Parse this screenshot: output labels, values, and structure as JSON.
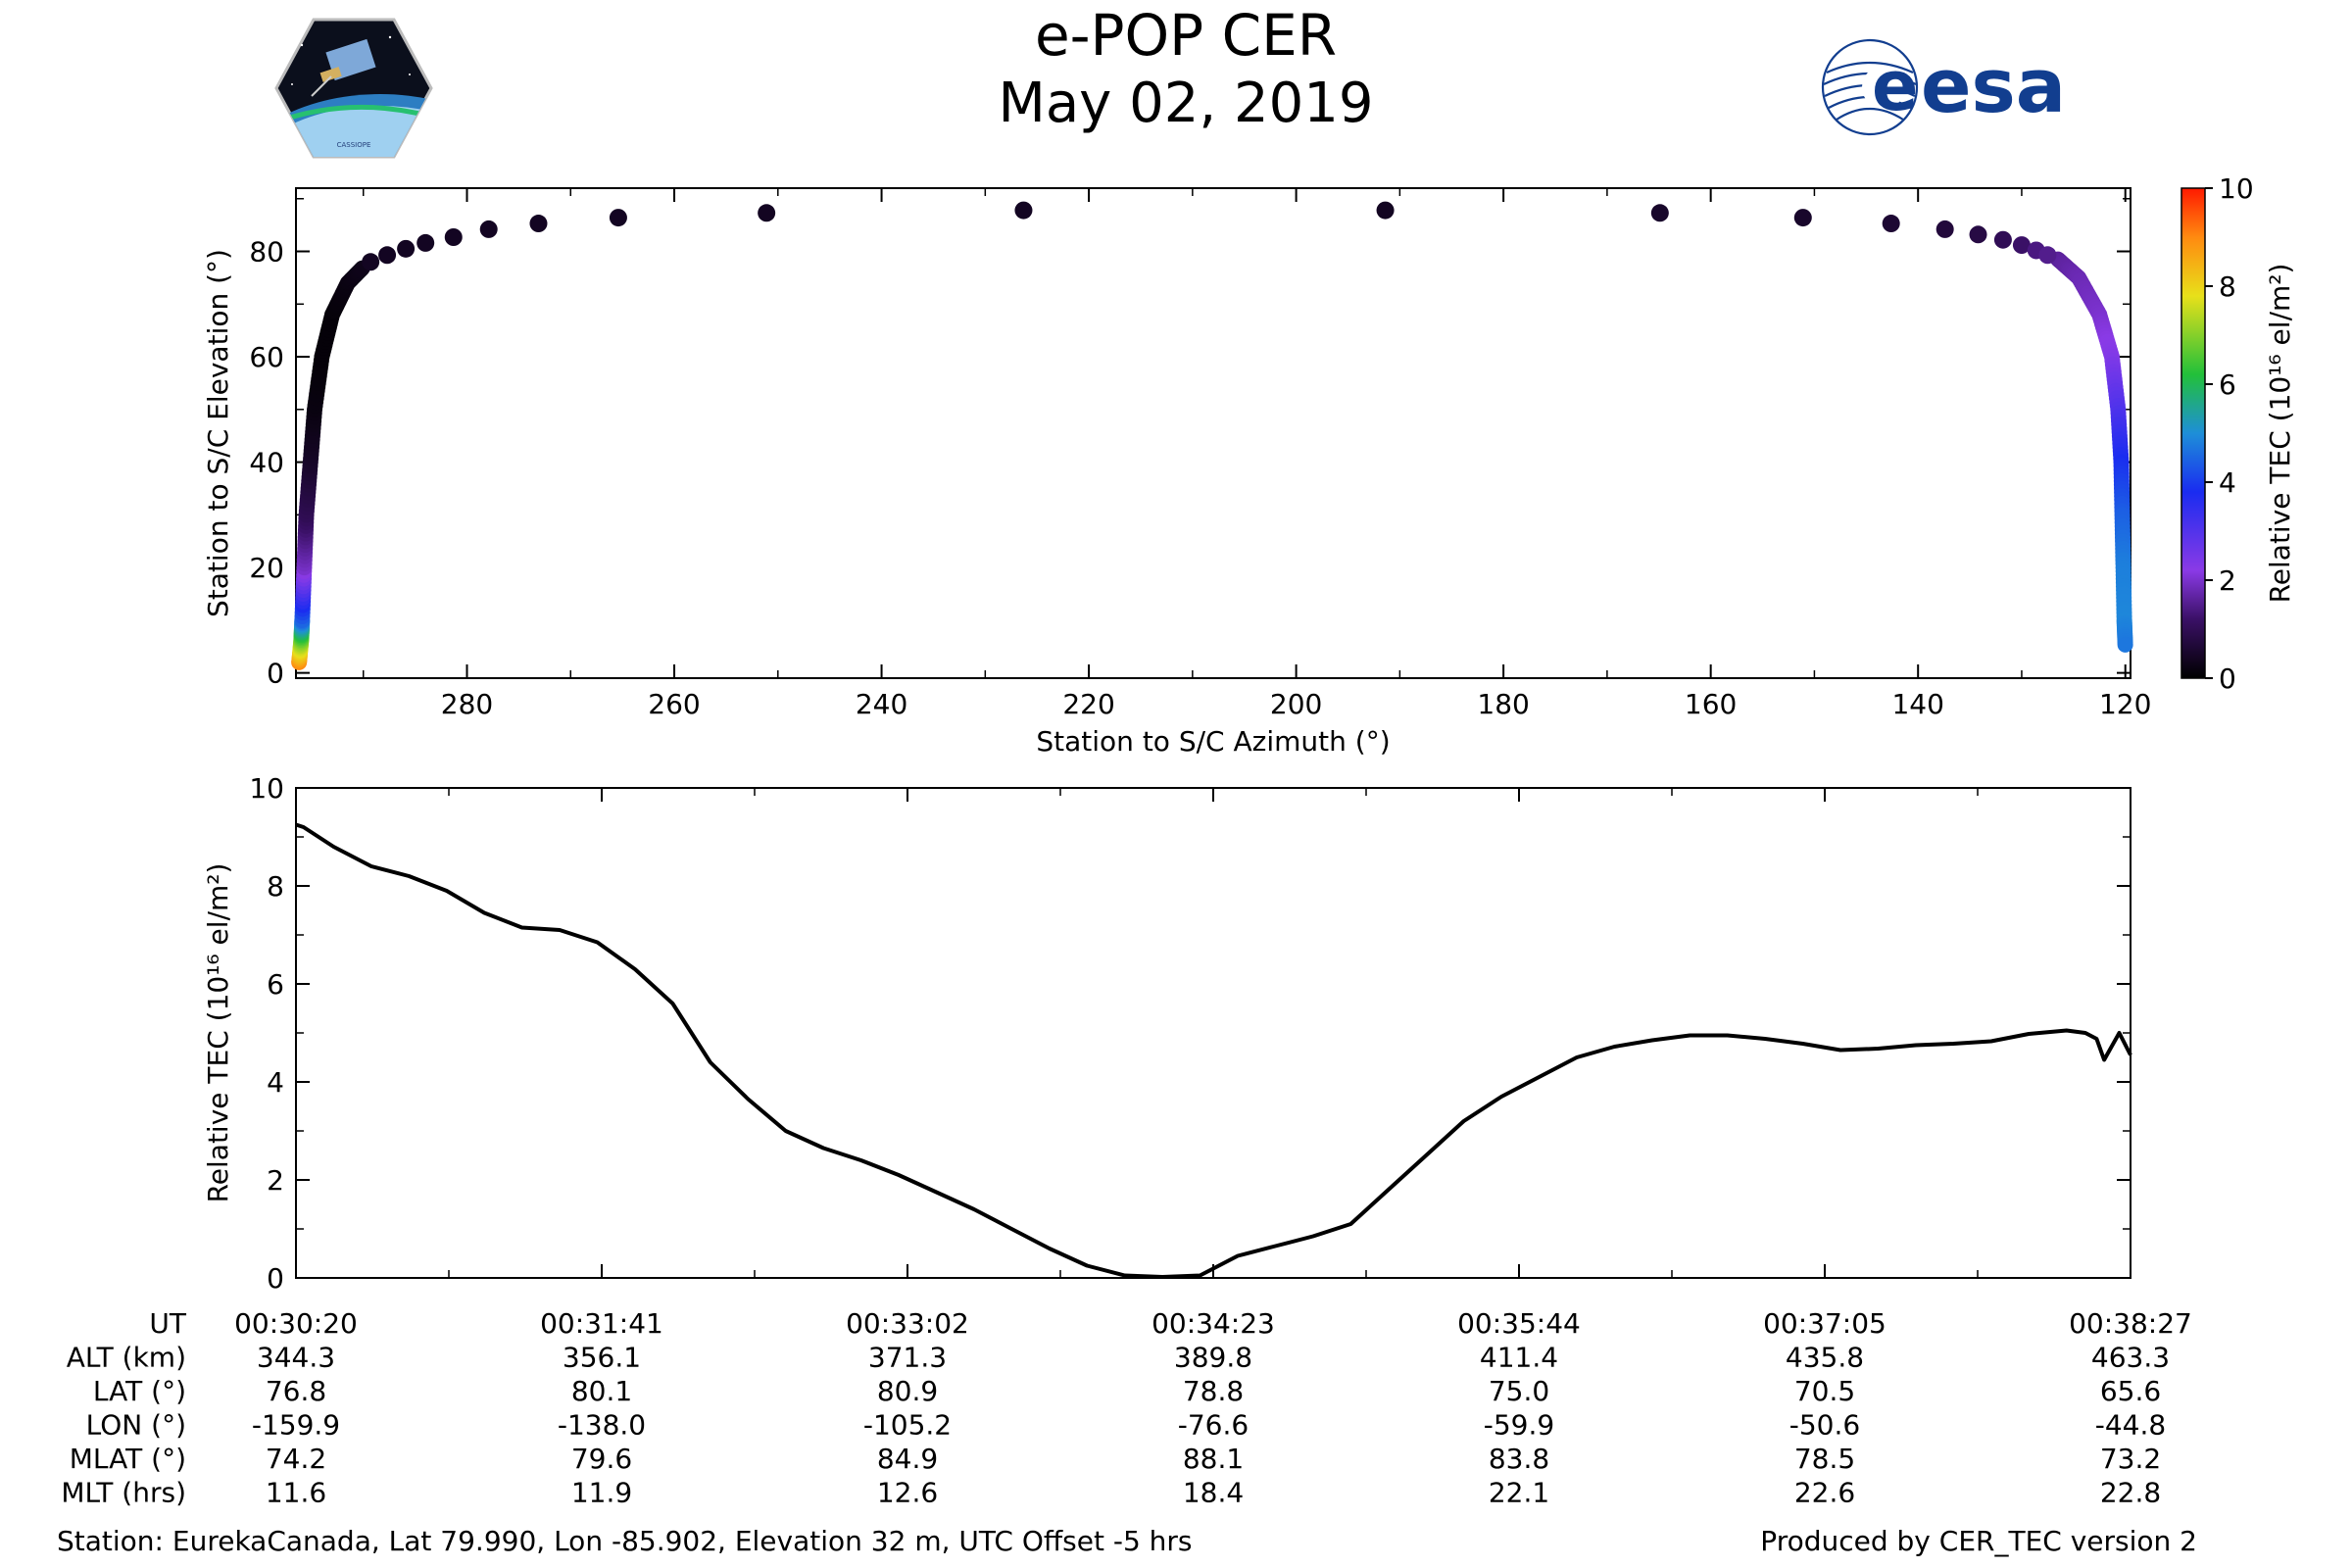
{
  "title": "e-POP CER",
  "subtitle": "May 02, 2019",
  "logos": {
    "left": {
      "icon": "cassiope-mission-badge-icon",
      "text": "CASSIOPE"
    },
    "right": {
      "icon": "esa-logo-icon",
      "text": "esa"
    }
  },
  "colors": {
    "line": "#000000",
    "axes": "#000000",
    "background": "#ffffff",
    "esa_blue": "#123e8f"
  },
  "chart_data": [
    {
      "type": "scatter",
      "id": "elev-az",
      "xlabel": "Station to S/C Azimuth (°)",
      "ylabel": "Station to S/C Elevation (°)",
      "xlim": [
        296.5,
        119.5
      ],
      "ylim": [
        -1,
        92
      ],
      "xticks": [
        280,
        260,
        240,
        220,
        200,
        180,
        160,
        140,
        120
      ],
      "xtick_labels": [
        "280",
        "260",
        "240",
        "220",
        "200",
        "180",
        "160",
        "140",
        "120"
      ],
      "yticks": [
        0,
        20,
        40,
        60,
        80
      ],
      "ytick_labels": [
        "0",
        "20",
        "40",
        "60",
        "80"
      ],
      "colorbar": {
        "label": "Relative TEC (10¹⁶ el/m²)",
        "ticks": [
          0,
          2,
          4,
          6,
          8,
          10
        ],
        "tick_labels": [
          "0",
          "2",
          "4",
          "6",
          "8",
          "10"
        ],
        "colormap": "gnuplot-like: black-purple-blue-green-yellow-red",
        "range": [
          0,
          10
        ]
      },
      "sparse_points": [
        {
          "az": 289.3,
          "el": 78.0,
          "tec": 0.4
        },
        {
          "az": 287.7,
          "el": 79.3,
          "tec": 0.4
        },
        {
          "az": 285.9,
          "el": 80.5,
          "tec": 0.4
        },
        {
          "az": 284.0,
          "el": 81.6,
          "tec": 0.4
        },
        {
          "az": 281.3,
          "el": 82.7,
          "tec": 0.4
        },
        {
          "az": 277.9,
          "el": 84.2,
          "tec": 0.4
        },
        {
          "az": 273.1,
          "el": 85.3,
          "tec": 0.4
        },
        {
          "az": 265.4,
          "el": 86.4,
          "tec": 0.4
        },
        {
          "az": 251.1,
          "el": 87.3,
          "tec": 0.4
        },
        {
          "az": 226.3,
          "el": 87.8,
          "tec": 0.4
        },
        {
          "az": 191.4,
          "el": 87.8,
          "tec": 0.4
        },
        {
          "az": 164.9,
          "el": 87.3,
          "tec": 0.5
        },
        {
          "az": 151.1,
          "el": 86.4,
          "tec": 0.5
        },
        {
          "az": 142.6,
          "el": 85.3,
          "tec": 0.6
        },
        {
          "az": 137.4,
          "el": 84.2,
          "tec": 0.7
        },
        {
          "az": 134.2,
          "el": 83.2,
          "tec": 0.8
        },
        {
          "az": 131.8,
          "el": 82.2,
          "tec": 1.0
        },
        {
          "az": 130.0,
          "el": 81.2,
          "tec": 1.2
        },
        {
          "az": 128.6,
          "el": 80.2,
          "tec": 1.4
        },
        {
          "az": 127.5,
          "el": 79.3,
          "tec": 1.5
        }
      ],
      "left_branch_dense": [
        {
          "az": 296.2,
          "el": 2,
          "tec": 9.0
        },
        {
          "az": 296.0,
          "el": 6,
          "tec": 7.0
        },
        {
          "az": 295.9,
          "el": 10,
          "tec": 4.5
        },
        {
          "az": 295.7,
          "el": 20,
          "tec": 2.0
        },
        {
          "az": 295.5,
          "el": 30,
          "tec": 1.0
        },
        {
          "az": 295.1,
          "el": 40,
          "tec": 0.5
        },
        {
          "az": 294.7,
          "el": 50,
          "tec": 0.2
        },
        {
          "az": 294.0,
          "el": 60,
          "tec": 0.1
        },
        {
          "az": 293.0,
          "el": 68,
          "tec": 0.1
        },
        {
          "az": 291.5,
          "el": 74,
          "tec": 0.2
        },
        {
          "az": 290.0,
          "el": 77,
          "tec": 0.3
        }
      ],
      "right_branch_dense": [
        {
          "az": 126.5,
          "el": 78.5,
          "tec": 1.6
        },
        {
          "az": 124.5,
          "el": 75,
          "tec": 1.8
        },
        {
          "az": 122.5,
          "el": 68,
          "tec": 2.0
        },
        {
          "az": 121.3,
          "el": 60,
          "tec": 2.3
        },
        {
          "az": 120.7,
          "el": 50,
          "tec": 3.0
        },
        {
          "az": 120.4,
          "el": 40,
          "tec": 3.8
        },
        {
          "az": 120.3,
          "el": 30,
          "tec": 4.4
        },
        {
          "az": 120.2,
          "el": 20,
          "tec": 4.8
        },
        {
          "az": 120.1,
          "el": 10,
          "tec": 4.9
        },
        {
          "az": 120.0,
          "el": 5,
          "tec": 4.7
        }
      ]
    },
    {
      "type": "line",
      "id": "tec-time",
      "ylabel": "Relative TEC (10¹⁶ el/m²)",
      "xlim": [
        0,
        487
      ],
      "ylim": [
        0,
        10
      ],
      "yticks": [
        0,
        2,
        4,
        6,
        8,
        10
      ],
      "ytick_labels": [
        "0",
        "2",
        "4",
        "6",
        "8",
        "10"
      ],
      "x_seconds_from_start": [
        0,
        2,
        4,
        10,
        20,
        30,
        40,
        50,
        60,
        70,
        80,
        90,
        100,
        110,
        120,
        130,
        140,
        150,
        160,
        170,
        180,
        190,
        200,
        210,
        220,
        230,
        240,
        250,
        260,
        270,
        280,
        290,
        300,
        310,
        320,
        330,
        340,
        350,
        360,
        370,
        380,
        390,
        400,
        410,
        420,
        430,
        440,
        450,
        460,
        470,
        475,
        478,
        480,
        484,
        487
      ],
      "tec": [
        9.25,
        9.2,
        9.1,
        8.8,
        8.4,
        8.2,
        7.9,
        7.45,
        7.15,
        7.1,
        6.85,
        6.3,
        5.6,
        4.4,
        3.65,
        3.0,
        2.65,
        2.4,
        2.1,
        1.75,
        1.4,
        1.0,
        0.6,
        0.25,
        0.05,
        0.02,
        0.05,
        0.45,
        0.65,
        0.85,
        1.1,
        1.8,
        2.5,
        3.2,
        3.7,
        4.1,
        4.5,
        4.72,
        4.85,
        4.95,
        4.95,
        4.88,
        4.78,
        4.65,
        4.68,
        4.75,
        4.78,
        4.83,
        4.98,
        5.05,
        5.0,
        4.88,
        4.45,
        5.0,
        4.55
      ]
    }
  ],
  "table": {
    "row_labels": [
      "UT",
      "ALT (km)",
      "LAT (°)",
      "LON (°)",
      "MLAT (°)",
      "MLT (hrs)"
    ],
    "columns": [
      [
        "00:30:20",
        "344.3",
        "76.8",
        "-159.9",
        "74.2",
        "11.6"
      ],
      [
        "00:31:41",
        "356.1",
        "80.1",
        "-138.0",
        "79.6",
        "11.9"
      ],
      [
        "00:33:02",
        "371.3",
        "80.9",
        "-105.2",
        "84.9",
        "12.6"
      ],
      [
        "00:34:23",
        "389.8",
        "78.8",
        "-76.6",
        "88.1",
        "18.4"
      ],
      [
        "00:35:44",
        "411.4",
        "75.0",
        "-59.9",
        "83.8",
        "22.1"
      ],
      [
        "00:37:05",
        "435.8",
        "70.5",
        "-50.6",
        "78.5",
        "22.6"
      ],
      [
        "00:38:27",
        "463.3",
        "65.6",
        "-44.8",
        "73.2",
        "22.8"
      ]
    ]
  },
  "footer": {
    "station": "Station: EurekaCanada, Lat 79.990, Lon -85.902, Elevation 32 m, UTC Offset -5 hrs",
    "produced": "Produced by CER_TEC version 2"
  }
}
